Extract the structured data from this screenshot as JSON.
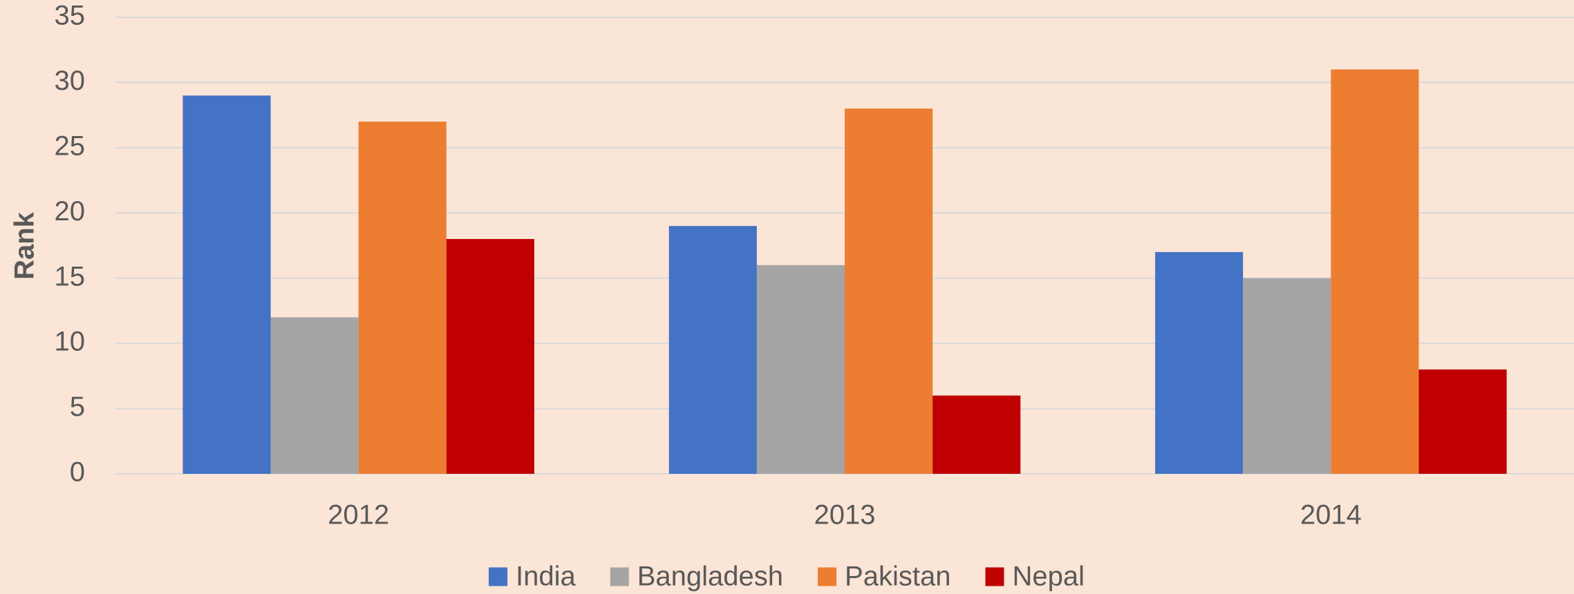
{
  "chart_data": {
    "type": "bar",
    "y_label": "Rank",
    "categories": [
      "2012",
      "2013",
      "2014"
    ],
    "series": [
      {
        "name": "India",
        "color": "#4472c4",
        "values": [
          29,
          19,
          17
        ]
      },
      {
        "name": "Bangladesh",
        "color": "#a5a5a5",
        "values": [
          12,
          16,
          15
        ]
      },
      {
        "name": "Pakistan",
        "color": "#ed7d31",
        "values": [
          27,
          28,
          31
        ]
      },
      {
        "name": "Nepal",
        "color": "#c00000",
        "values": [
          18,
          6,
          8
        ]
      }
    ],
    "ylim": [
      0,
      35
    ],
    "yticks": [
      0,
      5,
      10,
      15,
      20,
      25,
      30,
      35
    ],
    "grid": true,
    "legend": "bottom"
  }
}
